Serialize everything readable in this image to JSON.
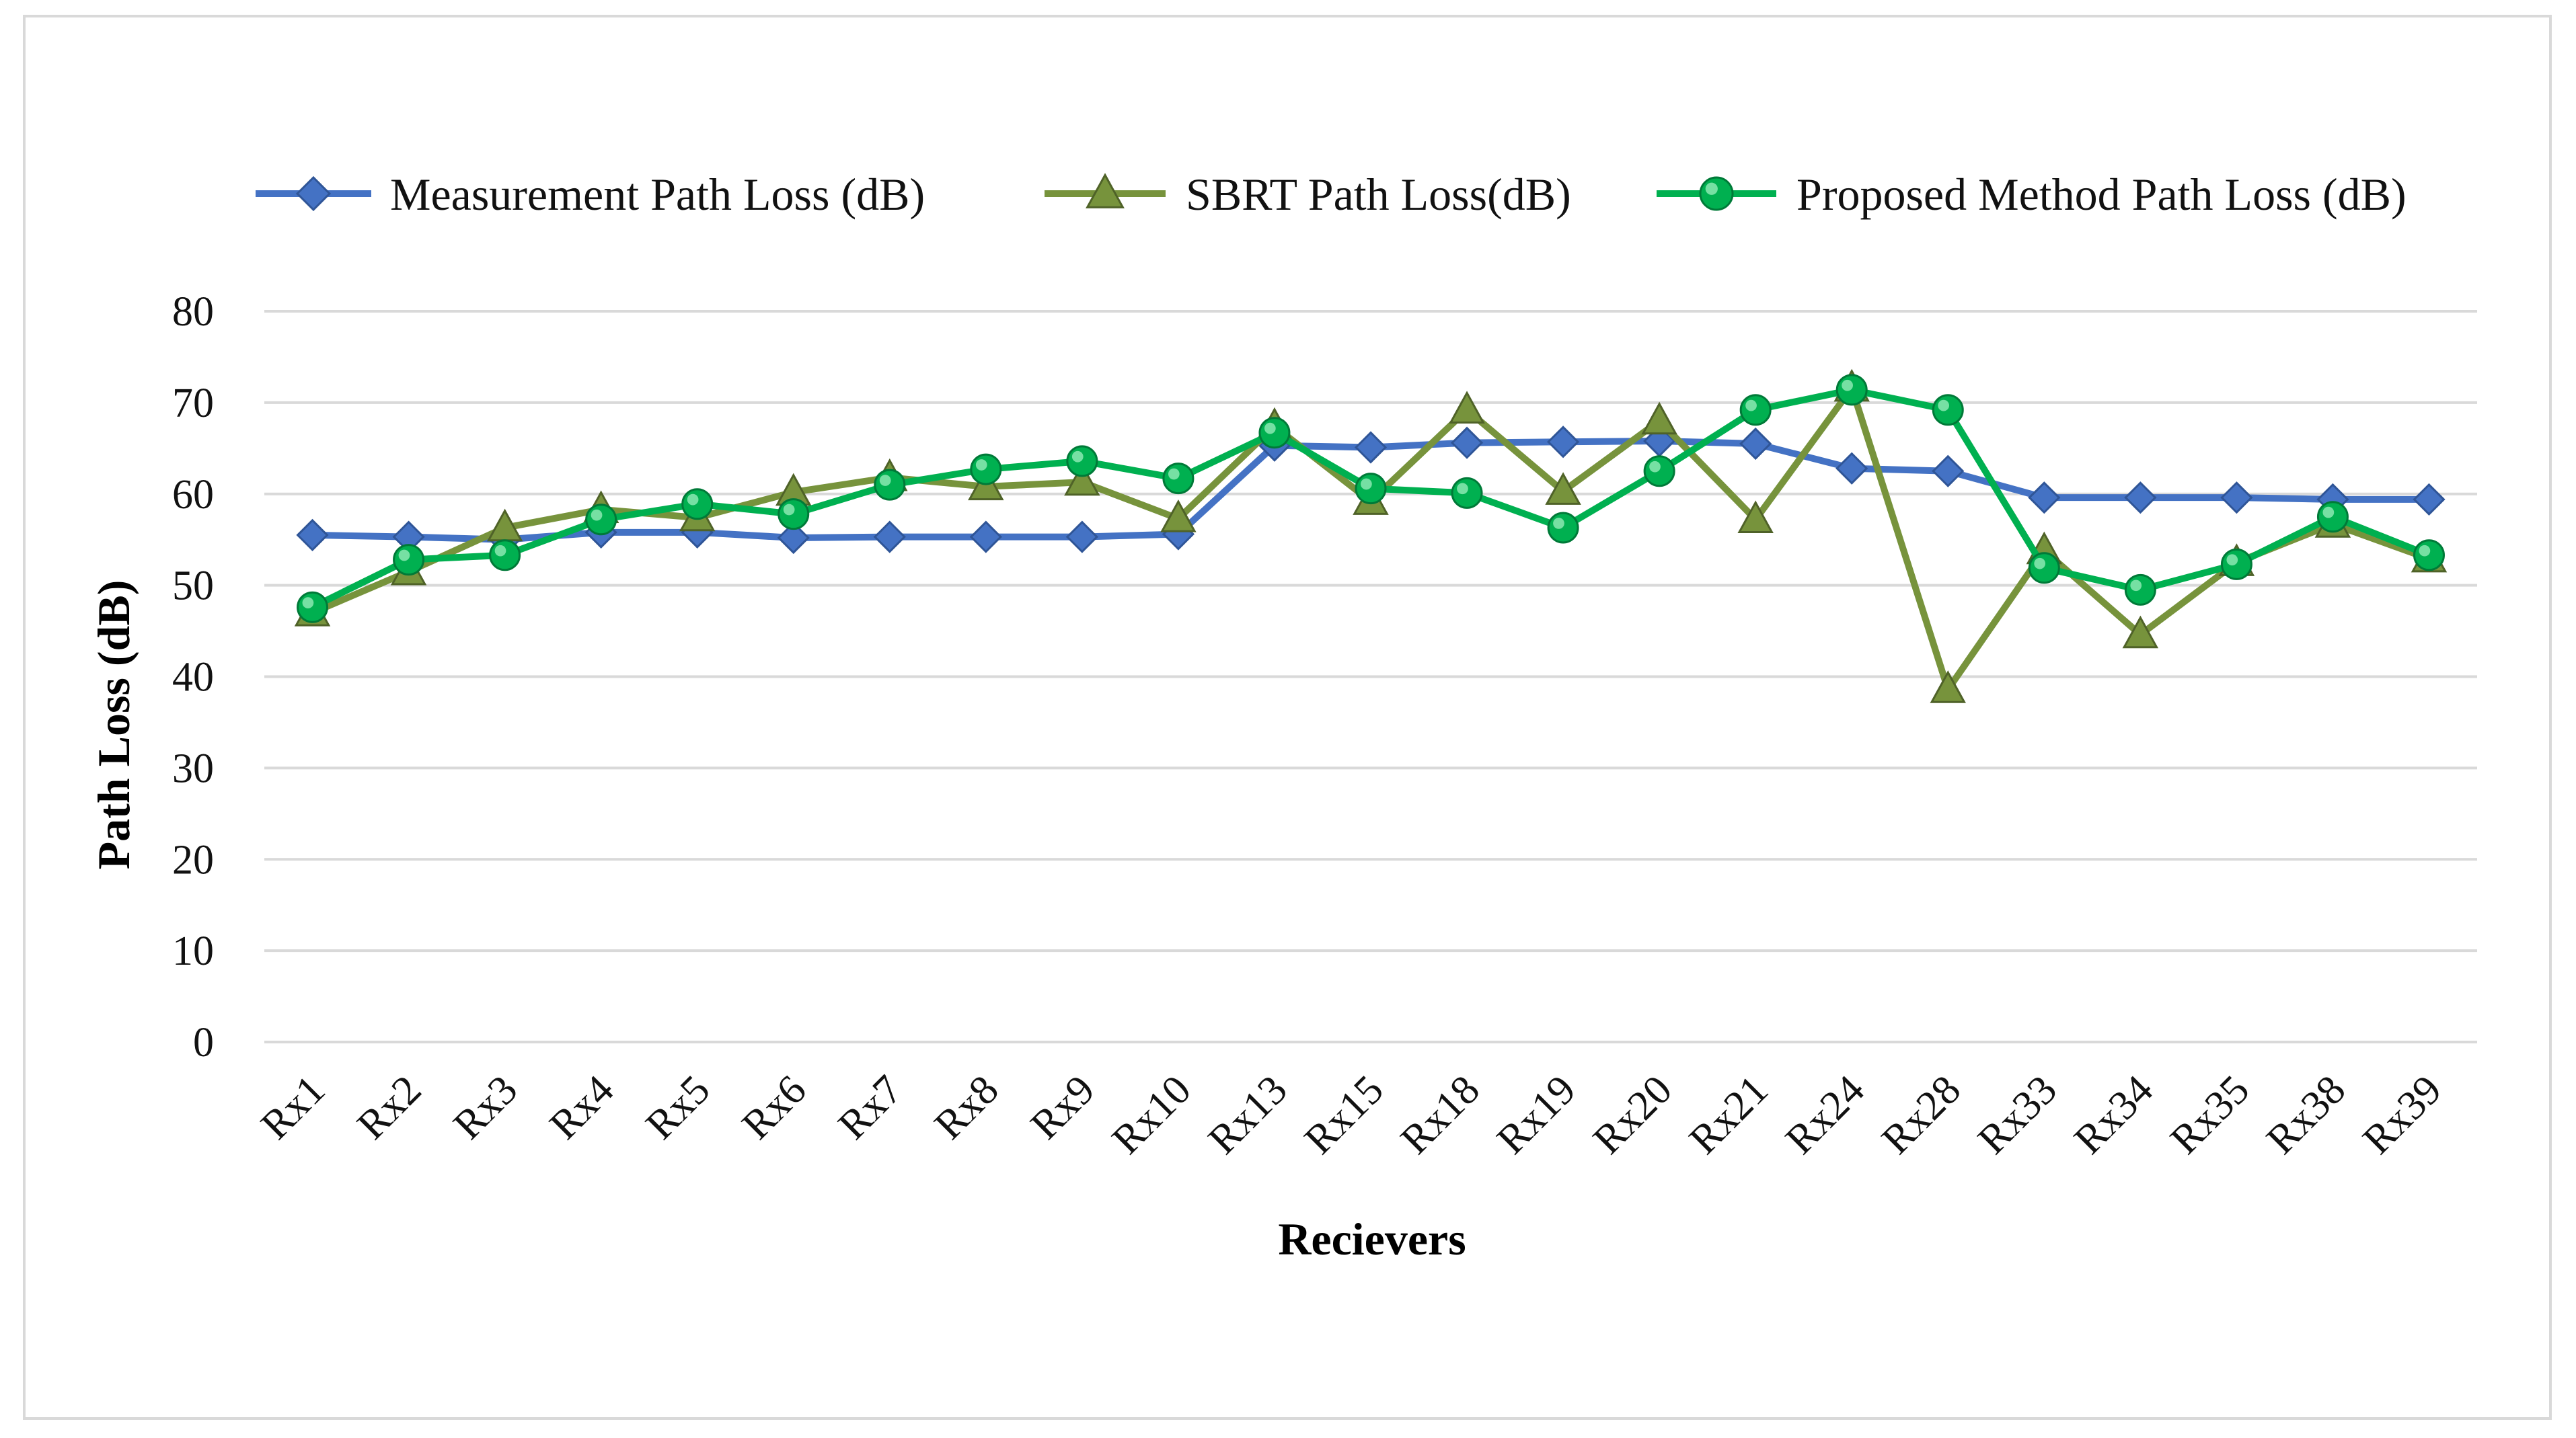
{
  "chart_data": {
    "type": "line",
    "title": "",
    "xlabel": "Recievers",
    "ylabel": "Path Loss (dB)",
    "ylim": [
      0,
      80
    ],
    "yticks": [
      0,
      10,
      20,
      30,
      40,
      50,
      60,
      70,
      80
    ],
    "grid": "horizontal",
    "legend_position": "top",
    "categories": [
      "Rx1",
      "Rx2",
      "Rx3",
      "Rx4",
      "Rx5",
      "Rx6",
      "Rx7",
      "Rx8",
      "Rx9",
      "Rx10",
      "Rx13",
      "Rx15",
      "Rx18",
      "Rx19",
      "Rx20",
      "Rx21",
      "Rx24",
      "Rx28",
      "Rx33",
      "Rx34",
      "Rx35",
      "Rx38",
      "Rx39"
    ],
    "series": [
      {
        "name": "Measurement Path Loss (dB)",
        "color": "#4472c4",
        "marker": "diamond",
        "values": [
          55.5,
          55.3,
          55.0,
          55.8,
          55.8,
          55.2,
          55.3,
          55.3,
          55.3,
          55.6,
          65.3,
          65.1,
          65.6,
          65.7,
          65.8,
          65.5,
          62.8,
          62.5,
          59.6,
          59.6,
          59.6,
          59.4,
          59.4
        ]
      },
      {
        "name": "SBRT Path Loss(dB)",
        "color": "#77933c",
        "marker": "triangle",
        "values": [
          47.0,
          51.5,
          56.3,
          58.3,
          57.4,
          60.2,
          61.8,
          60.8,
          61.3,
          57.3,
          67.4,
          59.2,
          69.2,
          60.3,
          68.0,
          57.2,
          71.6,
          38.6,
          53.8,
          44.6,
          52.5,
          56.7,
          52.9
        ]
      },
      {
        "name": "Proposed Method Path Loss (dB)",
        "color": "#00b050",
        "marker": "circle",
        "values": [
          47.6,
          52.8,
          53.3,
          57.2,
          58.9,
          57.8,
          61.0,
          62.7,
          63.6,
          61.7,
          66.7,
          60.6,
          60.1,
          56.3,
          62.5,
          69.2,
          71.4,
          69.2,
          51.9,
          49.5,
          52.3,
          57.5,
          53.3
        ]
      }
    ]
  }
}
